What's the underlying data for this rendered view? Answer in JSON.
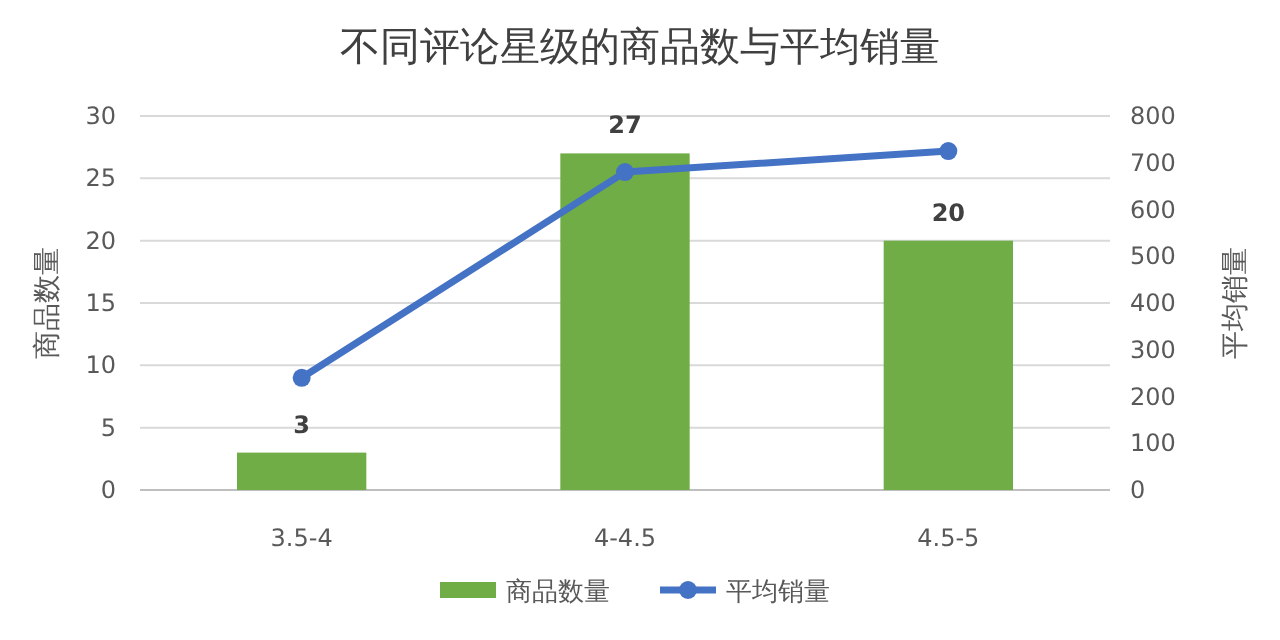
{
  "chart_data": {
    "type": "bar",
    "title": "不同评论星级的商品数与平均销量",
    "ylabel": "商品数量",
    "y2label": "平均销量",
    "categories": [
      "3.5-4",
      "4-4.5",
      "4.5-5"
    ],
    "series": [
      {
        "name": "商品数量",
        "color": "#70ad47",
        "values": [
          3,
          27,
          20
        ],
        "value_labels": [
          "3",
          "27",
          "20"
        ]
      },
      {
        "name": "平均销量",
        "type": "line",
        "axis": "y2",
        "color": "#4472c4",
        "values": [
          240,
          680,
          725
        ],
        "marker": "circle"
      }
    ],
    "ylim": [
      0,
      30
    ],
    "yticks": [
      0,
      5,
      10,
      15,
      20,
      25,
      30
    ],
    "y2lim": [
      0,
      800
    ],
    "y2ticks": [
      0,
      100,
      200,
      300,
      400,
      500,
      600,
      700,
      800
    ],
    "grid": "y",
    "legend": "bottom"
  }
}
